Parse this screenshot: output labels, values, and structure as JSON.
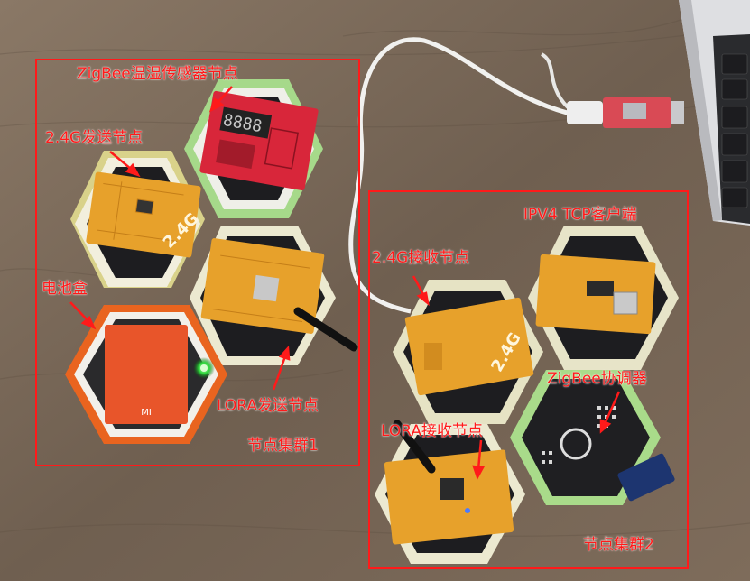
{
  "labels": {
    "zigbee_temp_node": "ZigBee温湿传感器节点",
    "send_24g_node": "2.4G发送节点",
    "battery_box": "电池盒",
    "lora_send_node": "LORA发送节点",
    "cluster1": "节点集群1",
    "ipv4_tcp_client": "IPV4 TCP客户端",
    "recv_24g_node": "2.4G接收节点",
    "zigbee_coordinator": "ZigBee协调器",
    "lora_recv_node": "LORA接收节点",
    "cluster2": "节点集群2"
  },
  "board_marks": {
    "send_24g_text": "2.4G",
    "recv_24g_text": "2.4G",
    "battery_brand": "MI"
  },
  "colors": {
    "annotation": "#ff1a1a",
    "table": "#7b6a5a",
    "pcb_orange": "#e7a12b",
    "pcb_red": "#d8263a",
    "battery": "#e8552a"
  }
}
